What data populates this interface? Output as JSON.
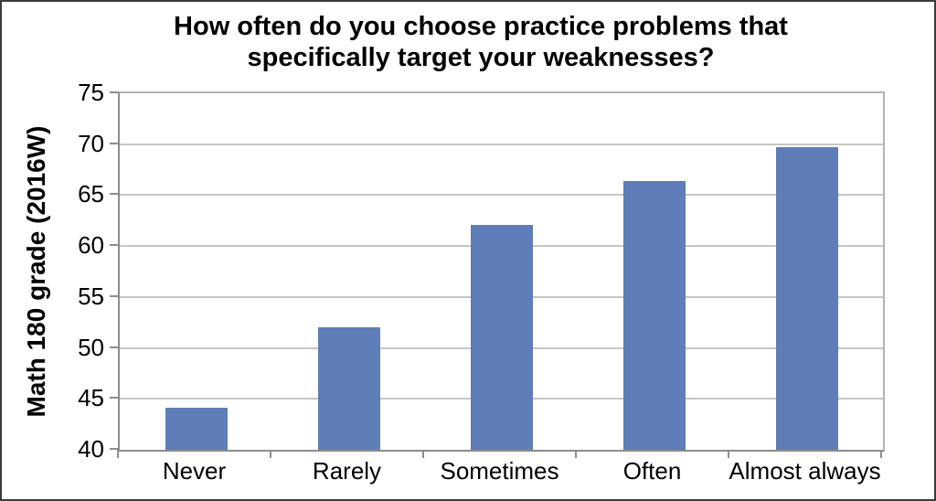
{
  "title": {
    "line1": "How often do you choose practice problems that",
    "line2": "specifically target your weaknesses?"
  },
  "chart_data": {
    "type": "bar",
    "title": "How often do you choose practice problems that specifically target your weaknesses?",
    "categories": [
      "Never",
      "Rarely",
      "Sometimes",
      "Often",
      "Almost always"
    ],
    "values": [
      44.1,
      52.0,
      62.1,
      66.4,
      69.7
    ],
    "xlabel": "",
    "ylabel": "Math 180 grade (2016W)",
    "ylim": [
      40,
      75
    ],
    "yticks": [
      40,
      45,
      50,
      55,
      60,
      65,
      70,
      75
    ],
    "grid": true,
    "legend": false,
    "bar_color": "#5f7db8",
    "gridline_color": "#c6c6c6",
    "axis_color": "#8c8c8c",
    "plot_border_color": "#b3b3b3"
  }
}
